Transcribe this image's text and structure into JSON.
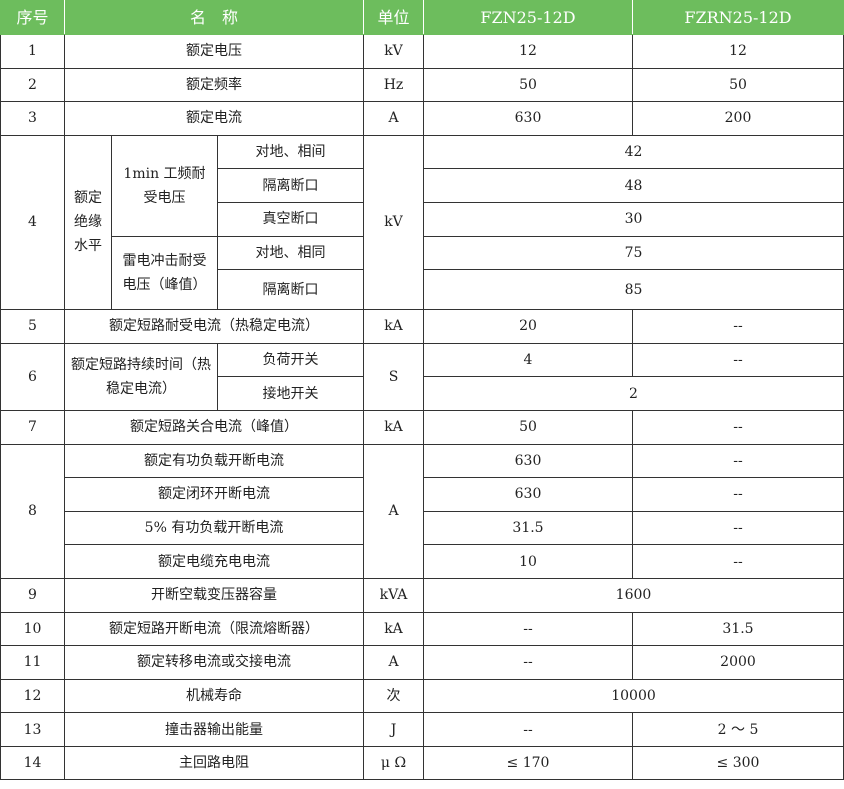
{
  "header": {
    "no": "序号",
    "name": "名　称",
    "unit": "单位",
    "model1": "FZN25-12D",
    "model2": "FZRN25-12D"
  },
  "accent_color": "#6dbd5d",
  "rows": {
    "r1": {
      "no": "1",
      "name": "额定电压",
      "unit": "kV",
      "v1": "12",
      "v2": "12"
    },
    "r2": {
      "no": "2",
      "name": "额定频率",
      "unit": "Hz",
      "v1": "50",
      "v2": "50"
    },
    "r3": {
      "no": "3",
      "name": "额定电流",
      "unit": "A",
      "v1": "630",
      "v2": "200"
    },
    "r4": {
      "no": "4",
      "name": "额定绝缘水平",
      "unit": "kV",
      "group1": "1min 工频耐受电压",
      "group2": "雷电冲击耐受电压（峰值）",
      "subs": [
        {
          "label": "对地、相间",
          "value": "42"
        },
        {
          "label": "隔离断口",
          "value": "48"
        },
        {
          "label": "真空断口",
          "value": "30"
        },
        {
          "label": "对地、相同",
          "value": "75"
        },
        {
          "label": "隔离断口",
          "value": "85"
        }
      ]
    },
    "r5": {
      "no": "5",
      "name": "额定短路耐受电流（热稳定电流）",
      "unit": "kA",
      "v1": "20",
      "v2": "--"
    },
    "r6": {
      "no": "6",
      "name": "额定短路持续时间（热稳定电流）",
      "unit": "S",
      "subs": [
        {
          "label": "负荷开关",
          "v1": "4",
          "v2": "--"
        },
        {
          "label": "接地开关",
          "value": "2"
        }
      ]
    },
    "r7": {
      "no": "7",
      "name": "额定短路关合电流（峰值）",
      "unit": "kA",
      "v1": "50",
      "v2": "--"
    },
    "r8": {
      "no": "8",
      "unit": "A",
      "subs": [
        {
          "name": "额定有功负载开断电流",
          "v1": "630",
          "v2": "--"
        },
        {
          "name": "额定闭环开断电流",
          "v1": "630",
          "v2": "--"
        },
        {
          "name": "5% 有功负载开断电流",
          "v1": "31.5",
          "v2": "--"
        },
        {
          "name": "额定电缆充电电流",
          "v1": "10",
          "v2": "--"
        }
      ]
    },
    "r9": {
      "no": "9",
      "name": "开断空载变压器容量",
      "unit": "kVA",
      "value": "1600"
    },
    "r10": {
      "no": "10",
      "name": "额定短路开断电流（限流熔断器）",
      "unit": "kA",
      "v1": "--",
      "v2": "31.5"
    },
    "r11": {
      "no": "11",
      "name": "额定转移电流或交接电流",
      "unit": "A",
      "v1": "--",
      "v2": "2000"
    },
    "r12": {
      "no": "12",
      "name": "机械寿命",
      "unit": "次",
      "value": "10000"
    },
    "r13": {
      "no": "13",
      "name": "撞击器输出能量",
      "unit": "J",
      "v1": "--",
      "v2": "2 ～ 5"
    },
    "r14": {
      "no": "14",
      "name": "主回路电阻",
      "unit": "μ Ω",
      "v1": "≤ 170",
      "v2": "≤ 300"
    }
  }
}
